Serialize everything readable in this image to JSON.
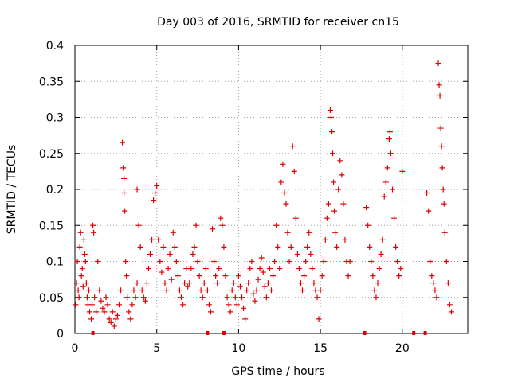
{
  "chart_data": {
    "type": "scatter",
    "title": "Day 003 of 2016, SRMTID for receiver cn15",
    "xlabel": "GPS time / hours",
    "ylabel": "SRMTID / TECUs",
    "xlim": [
      0,
      24
    ],
    "ylim": [
      0,
      0.4
    ],
    "grid": true,
    "marker": "+",
    "color": "#e00000",
    "xticks": [
      0,
      5,
      10,
      15,
      20
    ],
    "xtick_labels": [
      "0",
      "5",
      "10",
      "15",
      "20"
    ],
    "yticks": [
      0,
      0.05,
      0.1,
      0.15,
      0.2,
      0.25,
      0.3,
      0.35,
      0.4
    ],
    "ytick_labels": [
      "0",
      "0.05",
      "0.1",
      "0.15",
      "0.2",
      "0.25",
      "0.3",
      "0.35",
      "0.4"
    ],
    "series": [
      {
        "name": "SRMTID",
        "points": [
          [
            0.05,
            0.04
          ],
          [
            0.1,
            0.07
          ],
          [
            0.15,
            0.1
          ],
          [
            0.2,
            0.06
          ],
          [
            0.25,
            0.05
          ],
          [
            0.3,
            0.12
          ],
          [
            0.35,
            0.14
          ],
          [
            0.4,
            0.08
          ],
          [
            0.45,
            0.09
          ],
          [
            0.5,
            0.065
          ],
          [
            0.55,
            0.13
          ],
          [
            0.6,
            0.11
          ],
          [
            0.65,
            0.1
          ],
          [
            0.7,
            0.07
          ],
          [
            0.75,
            0.05
          ],
          [
            0.8,
            0.04
          ],
          [
            0.85,
            0.06
          ],
          [
            0.9,
            0.03
          ],
          [
            1.0,
            0.02
          ],
          [
            1.05,
            0.04
          ],
          [
            1.1,
            0.15
          ],
          [
            1.15,
            0.14
          ],
          [
            1.2,
            0.05
          ],
          [
            1.3,
            0.03
          ],
          [
            1.4,
            0.1
          ],
          [
            1.5,
            0.06
          ],
          [
            1.6,
            0.045
          ],
          [
            1.7,
            0.035
          ],
          [
            1.8,
            0.03
          ],
          [
            1.9,
            0.05
          ],
          [
            2.0,
            0.04
          ],
          [
            2.1,
            0.02
          ],
          [
            2.2,
            0.015
          ],
          [
            2.3,
            0.03
          ],
          [
            2.4,
            0.01
          ],
          [
            2.5,
            0.02
          ],
          [
            2.6,
            0.025
          ],
          [
            2.7,
            0.04
          ],
          [
            2.8,
            0.06
          ],
          [
            2.9,
            0.265
          ],
          [
            2.95,
            0.23
          ],
          [
            3.0,
            0.215
          ],
          [
            3.0,
            0.195
          ],
          [
            3.05,
            0.17
          ],
          [
            3.1,
            0.1
          ],
          [
            3.15,
            0.08
          ],
          [
            3.2,
            0.05
          ],
          [
            3.3,
            0.03
          ],
          [
            3.4,
            0.02
          ],
          [
            3.5,
            0.04
          ],
          [
            3.6,
            0.06
          ],
          [
            3.7,
            0.05
          ],
          [
            3.8,
            0.07
          ],
          [
            3.8,
            0.2
          ],
          [
            3.9,
            0.15
          ],
          [
            4.0,
            0.12
          ],
          [
            4.1,
            0.06
          ],
          [
            4.2,
            0.05
          ],
          [
            4.3,
            0.045
          ],
          [
            4.4,
            0.07
          ],
          [
            4.5,
            0.09
          ],
          [
            4.6,
            0.11
          ],
          [
            4.7,
            0.13
          ],
          [
            4.8,
            0.185
          ],
          [
            4.9,
            0.195
          ],
          [
            5.0,
            0.205
          ],
          [
            5.1,
            0.13
          ],
          [
            5.2,
            0.1
          ],
          [
            5.3,
            0.085
          ],
          [
            5.4,
            0.12
          ],
          [
            5.5,
            0.07
          ],
          [
            5.6,
            0.06
          ],
          [
            5.7,
            0.09
          ],
          [
            5.8,
            0.11
          ],
          [
            5.9,
            0.075
          ],
          [
            6.0,
            0.14
          ],
          [
            6.1,
            0.12
          ],
          [
            6.2,
            0.1
          ],
          [
            6.3,
            0.08
          ],
          [
            6.4,
            0.06
          ],
          [
            6.5,
            0.05
          ],
          [
            6.6,
            0.04
          ],
          [
            6.7,
            0.07
          ],
          [
            6.8,
            0.09
          ],
          [
            6.9,
            0.065
          ],
          [
            7.0,
            0.07
          ],
          [
            7.1,
            0.09
          ],
          [
            7.2,
            0.11
          ],
          [
            7.3,
            0.12
          ],
          [
            7.4,
            0.15
          ],
          [
            7.5,
            0.1
          ],
          [
            7.6,
            0.08
          ],
          [
            7.7,
            0.06
          ],
          [
            7.8,
            0.05
          ],
          [
            7.9,
            0.07
          ],
          [
            8.0,
            0.09
          ],
          [
            8.1,
            0.06
          ],
          [
            8.2,
            0.04
          ],
          [
            8.3,
            0.03
          ],
          [
            8.4,
            0.145
          ],
          [
            8.5,
            0.1
          ],
          [
            8.6,
            0.08
          ],
          [
            8.7,
            0.07
          ],
          [
            8.8,
            0.09
          ],
          [
            8.9,
            0.16
          ],
          [
            9.0,
            0.15
          ],
          [
            9.1,
            0.12
          ],
          [
            9.2,
            0.08
          ],
          [
            9.3,
            0.05
          ],
          [
            9.4,
            0.04
          ],
          [
            9.5,
            0.03
          ],
          [
            9.6,
            0.06
          ],
          [
            9.7,
            0.07
          ],
          [
            9.8,
            0.05
          ],
          [
            9.9,
            0.04
          ],
          [
            10.0,
            0.08
          ],
          [
            10.1,
            0.065
          ],
          [
            10.2,
            0.05
          ],
          [
            10.3,
            0.035
          ],
          [
            10.4,
            0.02
          ],
          [
            10.5,
            0.06
          ],
          [
            10.6,
            0.07
          ],
          [
            10.7,
            0.09
          ],
          [
            10.8,
            0.1
          ],
          [
            10.9,
            0.055
          ],
          [
            11.0,
            0.045
          ],
          [
            11.1,
            0.06
          ],
          [
            11.2,
            0.075
          ],
          [
            11.3,
            0.09
          ],
          [
            11.4,
            0.105
          ],
          [
            11.5,
            0.085
          ],
          [
            11.6,
            0.065
          ],
          [
            11.7,
            0.05
          ],
          [
            11.8,
            0.07
          ],
          [
            11.9,
            0.09
          ],
          [
            12.0,
            0.06
          ],
          [
            12.1,
            0.08
          ],
          [
            12.2,
            0.1
          ],
          [
            12.3,
            0.15
          ],
          [
            12.4,
            0.12
          ],
          [
            12.5,
            0.09
          ],
          [
            12.6,
            0.21
          ],
          [
            12.7,
            0.235
          ],
          [
            12.8,
            0.195
          ],
          [
            12.9,
            0.18
          ],
          [
            13.0,
            0.14
          ],
          [
            13.1,
            0.1
          ],
          [
            13.2,
            0.12
          ],
          [
            13.3,
            0.26
          ],
          [
            13.4,
            0.225
          ],
          [
            13.5,
            0.16
          ],
          [
            13.6,
            0.11
          ],
          [
            13.7,
            0.09
          ],
          [
            13.8,
            0.07
          ],
          [
            13.9,
            0.06
          ],
          [
            14.0,
            0.08
          ],
          [
            14.1,
            0.1
          ],
          [
            14.2,
            0.12
          ],
          [
            14.3,
            0.14
          ],
          [
            14.4,
            0.11
          ],
          [
            14.5,
            0.09
          ],
          [
            14.6,
            0.07
          ],
          [
            14.7,
            0.06
          ],
          [
            14.8,
            0.05
          ],
          [
            14.9,
            0.02
          ],
          [
            15.0,
            0.06
          ],
          [
            15.1,
            0.08
          ],
          [
            15.2,
            0.1
          ],
          [
            15.3,
            0.13
          ],
          [
            15.4,
            0.16
          ],
          [
            15.5,
            0.18
          ],
          [
            15.6,
            0.31
          ],
          [
            15.65,
            0.3
          ],
          [
            15.7,
            0.28
          ],
          [
            15.75,
            0.25
          ],
          [
            15.8,
            0.21
          ],
          [
            15.85,
            0.17
          ],
          [
            15.9,
            0.14
          ],
          [
            16.0,
            0.12
          ],
          [
            16.1,
            0.2
          ],
          [
            16.2,
            0.24
          ],
          [
            16.3,
            0.22
          ],
          [
            16.4,
            0.18
          ],
          [
            16.5,
            0.13
          ],
          [
            16.6,
            0.1
          ],
          [
            16.7,
            0.08
          ],
          [
            16.8,
            0.1
          ],
          [
            17.8,
            0.175
          ],
          [
            17.9,
            0.15
          ],
          [
            18.0,
            0.12
          ],
          [
            18.1,
            0.1
          ],
          [
            18.2,
            0.08
          ],
          [
            18.3,
            0.06
          ],
          [
            18.4,
            0.05
          ],
          [
            18.5,
            0.07
          ],
          [
            18.6,
            0.09
          ],
          [
            18.7,
            0.11
          ],
          [
            18.8,
            0.13
          ],
          [
            18.9,
            0.19
          ],
          [
            19.0,
            0.21
          ],
          [
            19.1,
            0.23
          ],
          [
            19.2,
            0.27
          ],
          [
            19.25,
            0.28
          ],
          [
            19.3,
            0.25
          ],
          [
            19.4,
            0.2
          ],
          [
            19.5,
            0.16
          ],
          [
            19.6,
            0.12
          ],
          [
            19.7,
            0.1
          ],
          [
            19.8,
            0.08
          ],
          [
            19.9,
            0.09
          ],
          [
            20.0,
            0.225
          ],
          [
            21.5,
            0.195
          ],
          [
            21.6,
            0.17
          ],
          [
            21.7,
            0.1
          ],
          [
            21.8,
            0.08
          ],
          [
            21.9,
            0.07
          ],
          [
            22.0,
            0.06
          ],
          [
            22.1,
            0.05
          ],
          [
            22.2,
            0.375
          ],
          [
            22.25,
            0.345
          ],
          [
            22.3,
            0.33
          ],
          [
            22.35,
            0.285
          ],
          [
            22.4,
            0.26
          ],
          [
            22.45,
            0.23
          ],
          [
            22.5,
            0.2
          ],
          [
            22.55,
            0.18
          ],
          [
            22.6,
            0.14
          ],
          [
            22.7,
            0.1
          ],
          [
            22.8,
            0.07
          ],
          [
            22.9,
            0.04
          ],
          [
            23.0,
            0.03
          ]
        ]
      }
    ],
    "data_gaps_at_zero": [
      1.1,
      8.1,
      9.1,
      17.7,
      20.7,
      21.4
    ]
  }
}
